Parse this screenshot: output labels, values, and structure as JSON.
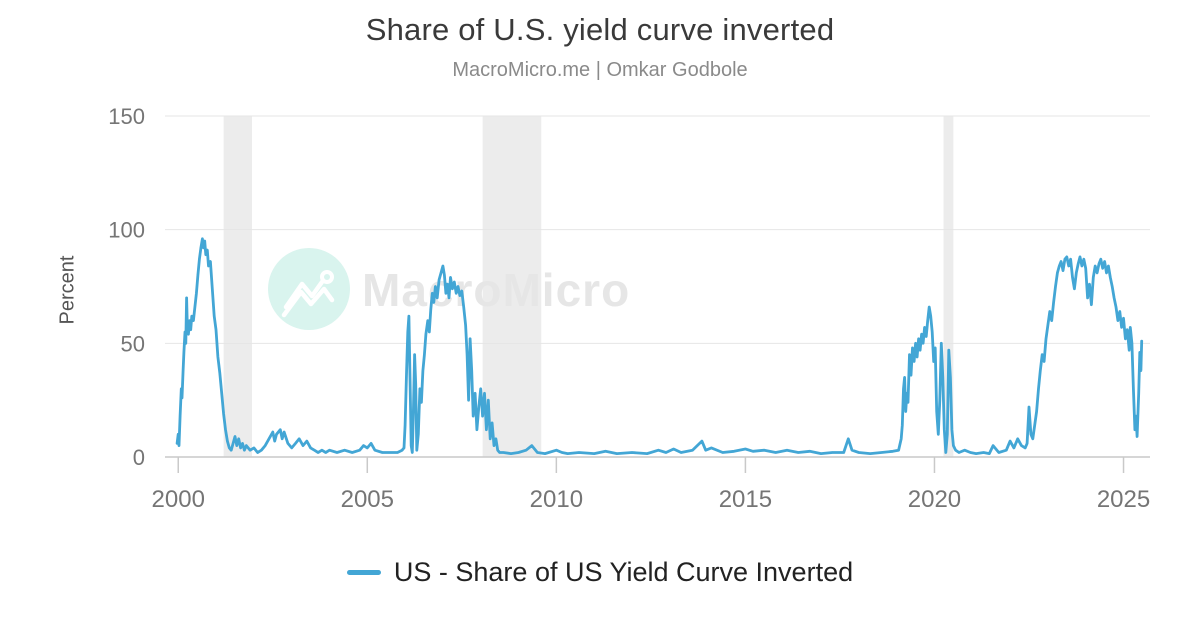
{
  "header": {
    "title": "Share of U.S. yield curve inverted",
    "subtitle": "MacroMicro.me | Omkar Godbole"
  },
  "watermark": {
    "brand": "MacroMicro",
    "icon": "macromicro-logo-icon",
    "circle_color": "#d9f4ee",
    "glyph_color": "#ffffff",
    "text_color": "#e6e6e6"
  },
  "colors": {
    "line": "#43a6d5",
    "recession_band": "#ececec",
    "grid": "#e6e6e6",
    "axis": "#c9c9c9",
    "title": "#3a3a3a",
    "subtitle": "#8a8a8a",
    "tick_label": "#757575",
    "legend_text": "#222222"
  },
  "legend": {
    "items": [
      {
        "label": "US - Share of US Yield Curve Inverted",
        "color": "#43a6d5"
      }
    ]
  },
  "chart_data": {
    "type": "line",
    "title": "Share of U.S. yield curve inverted",
    "subtitle": "MacroMicro.me | Omkar Godbole",
    "xlabel": "",
    "ylabel": "Percent",
    "xlim": [
      1999.65,
      2025.7
    ],
    "ylim": [
      0,
      150
    ],
    "x_ticks": [
      2000,
      2005,
      2010,
      2015,
      2020,
      2025
    ],
    "y_ticks": [
      0,
      50,
      100,
      150
    ],
    "grid": true,
    "legend_position": "bottom",
    "recession_bands": [
      [
        2001.2,
        2001.95
      ],
      [
        2008.05,
        2009.6
      ],
      [
        2020.24,
        2020.5
      ]
    ],
    "series": [
      {
        "name": "US - Share of US Yield Curve Inverted",
        "color": "#43a6d5",
        "unit": "percent",
        "points": [
          [
            1999.97,
            6
          ],
          [
            2000.0,
            10
          ],
          [
            2000.02,
            5
          ],
          [
            2000.05,
            18
          ],
          [
            2000.08,
            30
          ],
          [
            2000.1,
            26
          ],
          [
            2000.13,
            38
          ],
          [
            2000.15,
            46
          ],
          [
            2000.18,
            55
          ],
          [
            2000.2,
            50
          ],
          [
            2000.22,
            70
          ],
          [
            2000.24,
            58
          ],
          [
            2000.27,
            54
          ],
          [
            2000.3,
            60
          ],
          [
            2000.33,
            56
          ],
          [
            2000.36,
            62
          ],
          [
            2000.4,
            60
          ],
          [
            2000.44,
            66
          ],
          [
            2000.48,
            72
          ],
          [
            2000.52,
            80
          ],
          [
            2000.56,
            87
          ],
          [
            2000.6,
            92
          ],
          [
            2000.64,
            96
          ],
          [
            2000.67,
            92
          ],
          [
            2000.7,
            95
          ],
          [
            2000.73,
            89
          ],
          [
            2000.77,
            91
          ],
          [
            2000.8,
            84
          ],
          [
            2000.85,
            86
          ],
          [
            2000.9,
            74
          ],
          [
            2000.95,
            62
          ],
          [
            2001.0,
            56
          ],
          [
            2001.05,
            44
          ],
          [
            2001.1,
            37
          ],
          [
            2001.15,
            28
          ],
          [
            2001.2,
            19
          ],
          [
            2001.25,
            12
          ],
          [
            2001.3,
            7
          ],
          [
            2001.35,
            4
          ],
          [
            2001.4,
            3
          ],
          [
            2001.45,
            6
          ],
          [
            2001.5,
            9
          ],
          [
            2001.55,
            5
          ],
          [
            2001.6,
            8
          ],
          [
            2001.65,
            4
          ],
          [
            2001.7,
            6
          ],
          [
            2001.75,
            3
          ],
          [
            2001.8,
            5
          ],
          [
            2001.9,
            3
          ],
          [
            2002.0,
            4
          ],
          [
            2002.1,
            2
          ],
          [
            2002.2,
            3
          ],
          [
            2002.3,
            5
          ],
          [
            2002.4,
            8
          ],
          [
            2002.5,
            11
          ],
          [
            2002.55,
            7
          ],
          [
            2002.6,
            10
          ],
          [
            2002.7,
            12
          ],
          [
            2002.75,
            8
          ],
          [
            2002.8,
            11
          ],
          [
            2002.9,
            6
          ],
          [
            2003.0,
            4
          ],
          [
            2003.1,
            6
          ],
          [
            2003.2,
            8
          ],
          [
            2003.3,
            5
          ],
          [
            2003.4,
            7
          ],
          [
            2003.5,
            4
          ],
          [
            2003.6,
            3
          ],
          [
            2003.7,
            2
          ],
          [
            2003.8,
            3
          ],
          [
            2003.9,
            2
          ],
          [
            2004.0,
            3
          ],
          [
            2004.2,
            2
          ],
          [
            2004.4,
            3
          ],
          [
            2004.6,
            2
          ],
          [
            2004.8,
            3
          ],
          [
            2004.9,
            5
          ],
          [
            2005.0,
            4
          ],
          [
            2005.1,
            6
          ],
          [
            2005.2,
            3
          ],
          [
            2005.4,
            2
          ],
          [
            2005.6,
            2
          ],
          [
            2005.8,
            2
          ],
          [
            2005.92,
            3
          ],
          [
            2005.97,
            4
          ],
          [
            2006.0,
            14
          ],
          [
            2006.04,
            38
          ],
          [
            2006.07,
            55
          ],
          [
            2006.1,
            62
          ],
          [
            2006.13,
            35
          ],
          [
            2006.16,
            5
          ],
          [
            2006.19,
            2
          ],
          [
            2006.22,
            20
          ],
          [
            2006.25,
            45
          ],
          [
            2006.28,
            32
          ],
          [
            2006.31,
            3
          ],
          [
            2006.35,
            10
          ],
          [
            2006.39,
            30
          ],
          [
            2006.43,
            24
          ],
          [
            2006.47,
            38
          ],
          [
            2006.51,
            45
          ],
          [
            2006.55,
            54
          ],
          [
            2006.6,
            60
          ],
          [
            2006.64,
            55
          ],
          [
            2006.68,
            65
          ],
          [
            2006.72,
            72
          ],
          [
            2006.76,
            68
          ],
          [
            2006.8,
            75
          ],
          [
            2006.85,
            70
          ],
          [
            2006.9,
            78
          ],
          [
            2006.95,
            81
          ],
          [
            2007.0,
            84
          ],
          [
            2007.04,
            80
          ],
          [
            2007.08,
            72
          ],
          [
            2007.12,
            76
          ],
          [
            2007.16,
            70
          ],
          [
            2007.2,
            79
          ],
          [
            2007.25,
            74
          ],
          [
            2007.3,
            77
          ],
          [
            2007.35,
            72
          ],
          [
            2007.4,
            75
          ],
          [
            2007.45,
            71
          ],
          [
            2007.5,
            73
          ],
          [
            2007.55,
            66
          ],
          [
            2007.6,
            58
          ],
          [
            2007.64,
            45
          ],
          [
            2007.68,
            25
          ],
          [
            2007.72,
            52
          ],
          [
            2007.76,
            38
          ],
          [
            2007.8,
            18
          ],
          [
            2007.85,
            28
          ],
          [
            2007.9,
            12
          ],
          [
            2007.95,
            22
          ],
          [
            2008.0,
            30
          ],
          [
            2008.05,
            18
          ],
          [
            2008.1,
            28
          ],
          [
            2008.15,
            12
          ],
          [
            2008.2,
            25
          ],
          [
            2008.25,
            8
          ],
          [
            2008.3,
            15
          ],
          [
            2008.35,
            5
          ],
          [
            2008.4,
            8
          ],
          [
            2008.45,
            3
          ],
          [
            2008.5,
            2
          ],
          [
            2008.6,
            2
          ],
          [
            2008.8,
            1.5
          ],
          [
            2009.0,
            2
          ],
          [
            2009.2,
            3
          ],
          [
            2009.35,
            5
          ],
          [
            2009.5,
            2
          ],
          [
            2009.7,
            1.5
          ],
          [
            2010.0,
            3
          ],
          [
            2010.15,
            2
          ],
          [
            2010.3,
            1.5
          ],
          [
            2010.6,
            2
          ],
          [
            2011.0,
            1.5
          ],
          [
            2011.3,
            2.5
          ],
          [
            2011.6,
            1.5
          ],
          [
            2012.0,
            2
          ],
          [
            2012.4,
            1.5
          ],
          [
            2012.7,
            3
          ],
          [
            2012.9,
            2
          ],
          [
            2013.1,
            3.5
          ],
          [
            2013.3,
            2
          ],
          [
            2013.6,
            3
          ],
          [
            2013.85,
            7
          ],
          [
            2013.95,
            3
          ],
          [
            2014.1,
            4
          ],
          [
            2014.4,
            2
          ],
          [
            2014.7,
            2.5
          ],
          [
            2015.0,
            3.5
          ],
          [
            2015.2,
            2.5
          ],
          [
            2015.5,
            3
          ],
          [
            2015.8,
            2
          ],
          [
            2016.1,
            3
          ],
          [
            2016.4,
            2
          ],
          [
            2016.7,
            2.5
          ],
          [
            2017.0,
            1.5
          ],
          [
            2017.3,
            2
          ],
          [
            2017.6,
            2
          ],
          [
            2017.72,
            8
          ],
          [
            2017.82,
            3
          ],
          [
            2018.0,
            2
          ],
          [
            2018.3,
            1.5
          ],
          [
            2018.6,
            2
          ],
          [
            2018.9,
            2.5
          ],
          [
            2019.05,
            3
          ],
          [
            2019.12,
            8
          ],
          [
            2019.15,
            14
          ],
          [
            2019.18,
            30
          ],
          [
            2019.21,
            35
          ],
          [
            2019.24,
            20
          ],
          [
            2019.27,
            28
          ],
          [
            2019.3,
            24
          ],
          [
            2019.34,
            45
          ],
          [
            2019.38,
            36
          ],
          [
            2019.42,
            48
          ],
          [
            2019.46,
            42
          ],
          [
            2019.5,
            50
          ],
          [
            2019.54,
            44
          ],
          [
            2019.58,
            52
          ],
          [
            2019.62,
            47
          ],
          [
            2019.66,
            54
          ],
          [
            2019.7,
            50
          ],
          [
            2019.74,
            57
          ],
          [
            2019.78,
            53
          ],
          [
            2019.82,
            60
          ],
          [
            2019.86,
            66
          ],
          [
            2019.9,
            62
          ],
          [
            2019.94,
            55
          ],
          [
            2019.98,
            42
          ],
          [
            2020.02,
            48
          ],
          [
            2020.06,
            20
          ],
          [
            2020.1,
            10
          ],
          [
            2020.14,
            25
          ],
          [
            2020.18,
            50
          ],
          [
            2020.22,
            35
          ],
          [
            2020.26,
            12
          ],
          [
            2020.3,
            2
          ],
          [
            2020.34,
            10
          ],
          [
            2020.38,
            47
          ],
          [
            2020.42,
            35
          ],
          [
            2020.46,
            12
          ],
          [
            2020.5,
            5
          ],
          [
            2020.56,
            3
          ],
          [
            2020.65,
            2
          ],
          [
            2020.8,
            3
          ],
          [
            2020.95,
            2
          ],
          [
            2021.1,
            1.5
          ],
          [
            2021.3,
            2
          ],
          [
            2021.45,
            1.5
          ],
          [
            2021.55,
            5
          ],
          [
            2021.7,
            2
          ],
          [
            2021.9,
            3
          ],
          [
            2022.0,
            7
          ],
          [
            2022.1,
            4
          ],
          [
            2022.2,
            8
          ],
          [
            2022.3,
            5
          ],
          [
            2022.4,
            4
          ],
          [
            2022.45,
            6
          ],
          [
            2022.5,
            22
          ],
          [
            2022.55,
            10
          ],
          [
            2022.6,
            8
          ],
          [
            2022.65,
            14
          ],
          [
            2022.7,
            20
          ],
          [
            2022.75,
            30
          ],
          [
            2022.8,
            38
          ],
          [
            2022.85,
            45
          ],
          [
            2022.9,
            42
          ],
          [
            2022.95,
            52
          ],
          [
            2023.0,
            58
          ],
          [
            2023.05,
            64
          ],
          [
            2023.1,
            60
          ],
          [
            2023.15,
            68
          ],
          [
            2023.2,
            75
          ],
          [
            2023.25,
            81
          ],
          [
            2023.3,
            84
          ],
          [
            2023.35,
            86
          ],
          [
            2023.4,
            82
          ],
          [
            2023.45,
            87
          ],
          [
            2023.5,
            88
          ],
          [
            2023.55,
            84
          ],
          [
            2023.6,
            87
          ],
          [
            2023.65,
            79
          ],
          [
            2023.7,
            74
          ],
          [
            2023.75,
            81
          ],
          [
            2023.8,
            85
          ],
          [
            2023.85,
            88
          ],
          [
            2023.9,
            84
          ],
          [
            2023.95,
            87
          ],
          [
            2024.0,
            83
          ],
          [
            2024.05,
            70
          ],
          [
            2024.1,
            76
          ],
          [
            2024.15,
            67
          ],
          [
            2024.2,
            79
          ],
          [
            2024.25,
            84
          ],
          [
            2024.3,
            81
          ],
          [
            2024.35,
            85
          ],
          [
            2024.4,
            87
          ],
          [
            2024.45,
            83
          ],
          [
            2024.5,
            86
          ],
          [
            2024.55,
            81
          ],
          [
            2024.6,
            84
          ],
          [
            2024.65,
            79
          ],
          [
            2024.7,
            75
          ],
          [
            2024.75,
            70
          ],
          [
            2024.8,
            66
          ],
          [
            2024.85,
            60
          ],
          [
            2024.9,
            64
          ],
          [
            2024.95,
            57
          ],
          [
            2025.0,
            61
          ],
          [
            2025.05,
            52
          ],
          [
            2025.1,
            56
          ],
          [
            2025.15,
            47
          ],
          [
            2025.18,
            57
          ],
          [
            2025.22,
            50
          ],
          [
            2025.26,
            30
          ],
          [
            2025.3,
            12
          ],
          [
            2025.33,
            18
          ],
          [
            2025.36,
            9
          ],
          [
            2025.4,
            28
          ],
          [
            2025.43,
            46
          ],
          [
            2025.46,
            38
          ],
          [
            2025.48,
            51
          ]
        ]
      }
    ]
  }
}
